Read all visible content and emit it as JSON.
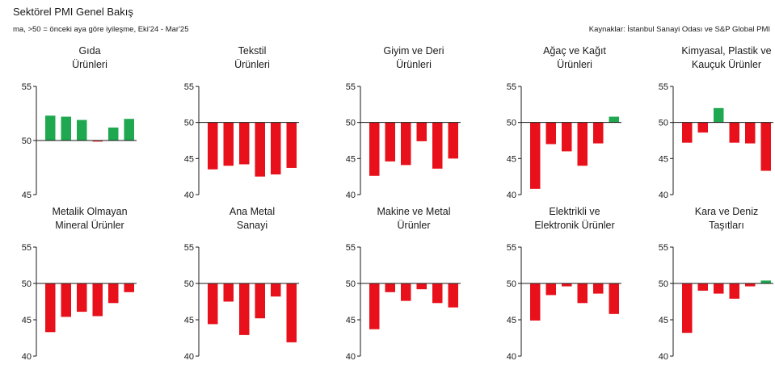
{
  "header": {
    "title": "Sektörel PMI Genel Bakış",
    "subtitle": "ma, >50 = önceki aya göre iyileşme, Eki'24 - Mar'25",
    "source": "Kaynaklar: İstanbul Sanayi Odası ve S&P Global PMI"
  },
  "colors": {
    "up": "#1fa84f",
    "down": "#e8101a",
    "baseline": "#1a1a1a",
    "text": "#1a1a1a"
  },
  "chart_data": [
    {
      "type": "bar",
      "title_lines": [
        "Gıda",
        "Ürünleri"
      ],
      "ylim": [
        45,
        55
      ],
      "yticks": [
        45,
        50,
        55
      ],
      "baseline": 50,
      "values": [
        52.3,
        52.2,
        51.9,
        49.9,
        51.2,
        52.0
      ]
    },
    {
      "type": "bar",
      "title_lines": [
        "Tekstil",
        "Ürünleri"
      ],
      "ylim": [
        40,
        55
      ],
      "yticks": [
        40,
        45,
        50,
        55
      ],
      "baseline": 50,
      "values": [
        43.5,
        44.0,
        44.2,
        42.5,
        42.8,
        43.7
      ]
    },
    {
      "type": "bar",
      "title_lines": [
        "Giyim ve Deri",
        "Ürünleri"
      ],
      "ylim": [
        40,
        55
      ],
      "yticks": [
        40,
        45,
        50,
        55
      ],
      "baseline": 50,
      "values": [
        42.6,
        44.6,
        44.1,
        47.4,
        43.6,
        45.0
      ]
    },
    {
      "type": "bar",
      "title_lines": [
        "Ağaç ve Kağıt",
        "Ürünleri"
      ],
      "ylim": [
        40,
        55
      ],
      "yticks": [
        40,
        45,
        50,
        55
      ],
      "baseline": 50,
      "values": [
        40.8,
        47.0,
        46.0,
        44.0,
        47.1,
        50.8
      ]
    },
    {
      "type": "bar",
      "title_lines": [
        "Kimyasal, Plastik ve",
        "Kauçuk Ürünler"
      ],
      "ylim": [
        40,
        55
      ],
      "yticks": [
        40,
        45,
        50,
        55
      ],
      "baseline": 50,
      "values": [
        47.2,
        48.6,
        52.0,
        47.2,
        47.1,
        43.3
      ]
    },
    {
      "type": "bar",
      "title_lines": [
        "Metalik Olmayan",
        "Mineral Ürünler"
      ],
      "ylim": [
        40,
        55
      ],
      "yticks": [
        40,
        45,
        50,
        55
      ],
      "baseline": 50,
      "values": [
        43.3,
        45.4,
        46.1,
        45.5,
        47.3,
        48.8
      ]
    },
    {
      "type": "bar",
      "title_lines": [
        "Ana Metal",
        "Sanayi"
      ],
      "ylim": [
        40,
        55
      ],
      "yticks": [
        40,
        45,
        50,
        55
      ],
      "baseline": 50,
      "values": [
        44.4,
        47.5,
        42.9,
        45.2,
        48.2,
        41.9
      ]
    },
    {
      "type": "bar",
      "title_lines": [
        "Makine ve Metal",
        "Ürünler"
      ],
      "ylim": [
        40,
        55
      ],
      "yticks": [
        40,
        45,
        50,
        55
      ],
      "baseline": 50,
      "values": [
        43.7,
        48.8,
        47.6,
        49.2,
        47.3,
        46.7
      ]
    },
    {
      "type": "bar",
      "title_lines": [
        "Elektrikli ve",
        "Elektronik Ürünler"
      ],
      "ylim": [
        40,
        55
      ],
      "yticks": [
        40,
        45,
        50,
        55
      ],
      "baseline": 50,
      "values": [
        44.9,
        48.4,
        49.6,
        47.3,
        48.6,
        45.8
      ]
    },
    {
      "type": "bar",
      "title_lines": [
        "Kara ve Deniz",
        "Taşıtları"
      ],
      "ylim": [
        40,
        55
      ],
      "yticks": [
        40,
        45,
        50,
        55
      ],
      "baseline": 50,
      "values": [
        43.2,
        49.0,
        48.6,
        47.9,
        49.6,
        50.4
      ]
    }
  ]
}
